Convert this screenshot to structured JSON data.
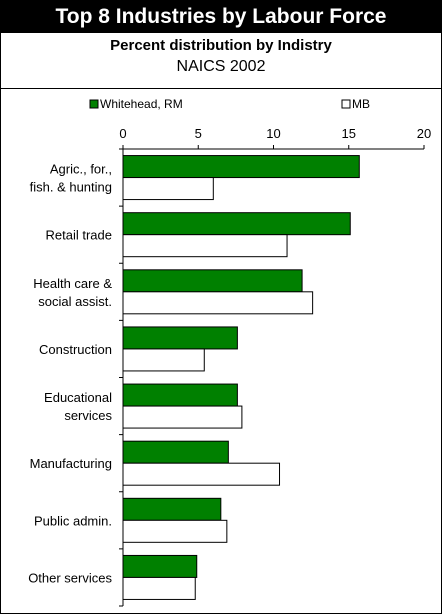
{
  "colors": {
    "series1": "#008000",
    "series2": "#ffffff",
    "stroke": "#000000",
    "title_bg": "#000000",
    "title_fg": "#ffffff"
  },
  "chart_data": {
    "type": "bar",
    "orientation": "horizontal",
    "title": "Top 8 Industries by Labour Force",
    "subtitle": "Percent distribution by Indistry",
    "subtitle2": "NAICS 2002",
    "xlim": [
      0,
      20
    ],
    "xticks": [
      "0",
      "5",
      "10",
      "15",
      "20"
    ],
    "legend_position": "top",
    "grid": false,
    "categories": [
      [
        "Agric., for.,",
        "fish. & hunting"
      ],
      [
        "Retail trade"
      ],
      [
        "Health care &",
        "social assist."
      ],
      [
        "Construction"
      ],
      [
        "Educational",
        "services"
      ],
      [
        "Manufacturing"
      ],
      [
        "Public admin."
      ],
      [
        "Other services"
      ]
    ],
    "series": [
      {
        "name": "Whitehead, RM",
        "color": "#008000",
        "values": [
          15.7,
          15.1,
          11.9,
          7.6,
          7.6,
          7.0,
          6.5,
          4.9
        ]
      },
      {
        "name": "MB",
        "color": "#ffffff",
        "values": [
          6.0,
          10.9,
          12.6,
          5.4,
          7.9,
          10.4,
          6.9,
          4.8
        ]
      }
    ]
  }
}
